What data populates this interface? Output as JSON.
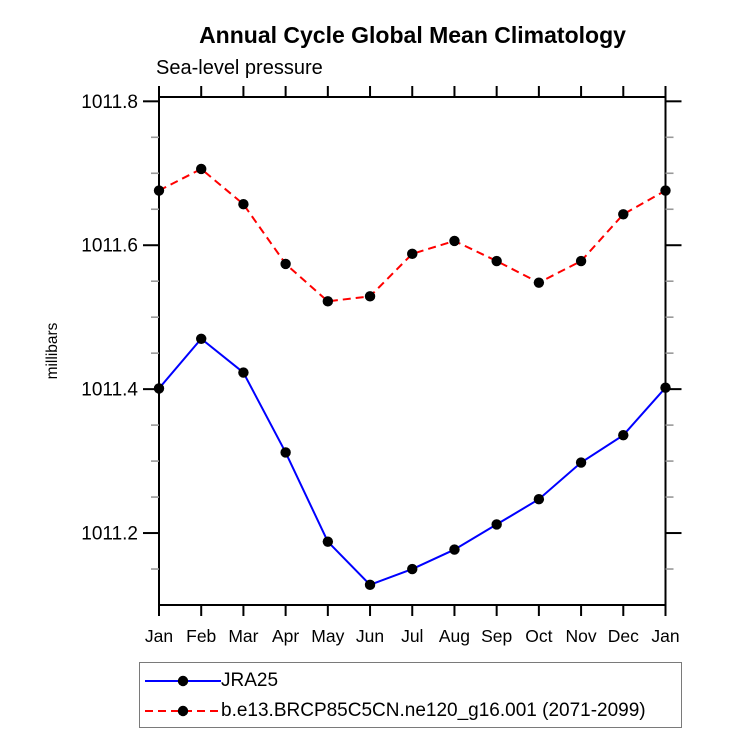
{
  "page": {
    "background": "#ffffff",
    "axis_color": "#000000",
    "minor_tick_color": "#999999",
    "legend_border_color": "#7a7a7a"
  },
  "chart_data": {
    "type": "line",
    "title": "Annual Cycle Global Mean Climatology",
    "subtitle": "Sea-level pressure",
    "ylabel": "millibars",
    "xlabel": "",
    "categories": [
      "Jan",
      "Feb",
      "Mar",
      "Apr",
      "May",
      "Jun",
      "Jul",
      "Aug",
      "Sep",
      "Oct",
      "Nov",
      "Dec",
      "Jan"
    ],
    "series": [
      {
        "name": "JRA25",
        "color": "#0000ff",
        "line_style": "solid",
        "marker": "circle",
        "marker_color": "#000000",
        "values": [
          1011.401,
          1011.47,
          1011.423,
          1011.312,
          1011.188,
          1011.128,
          1011.15,
          1011.177,
          1011.212,
          1011.247,
          1011.298,
          1011.336,
          1011.402
        ]
      },
      {
        "name": "b.e13.BRCP85C5CN.ne120_g16.001 (2071-2099)",
        "color": "#ff0000",
        "line_style": "dashed",
        "marker": "circle",
        "marker_color": "#000000",
        "values": [
          1011.676,
          1011.706,
          1011.657,
          1011.574,
          1011.522,
          1011.529,
          1011.588,
          1011.606,
          1011.578,
          1011.548,
          1011.578,
          1011.643,
          1011.676
        ]
      }
    ],
    "ylim": [
      1011.1,
      1011.806
    ],
    "yticks_major": [
      1011.2,
      1011.4,
      1011.6,
      1011.8
    ],
    "ytick_labels": [
      "1011.2",
      "1011.4",
      "1011.6",
      "1011.8"
    ],
    "yminor_step": 0.05,
    "grid": false,
    "legend_position": "bottom-left",
    "tick_direction": "out"
  }
}
